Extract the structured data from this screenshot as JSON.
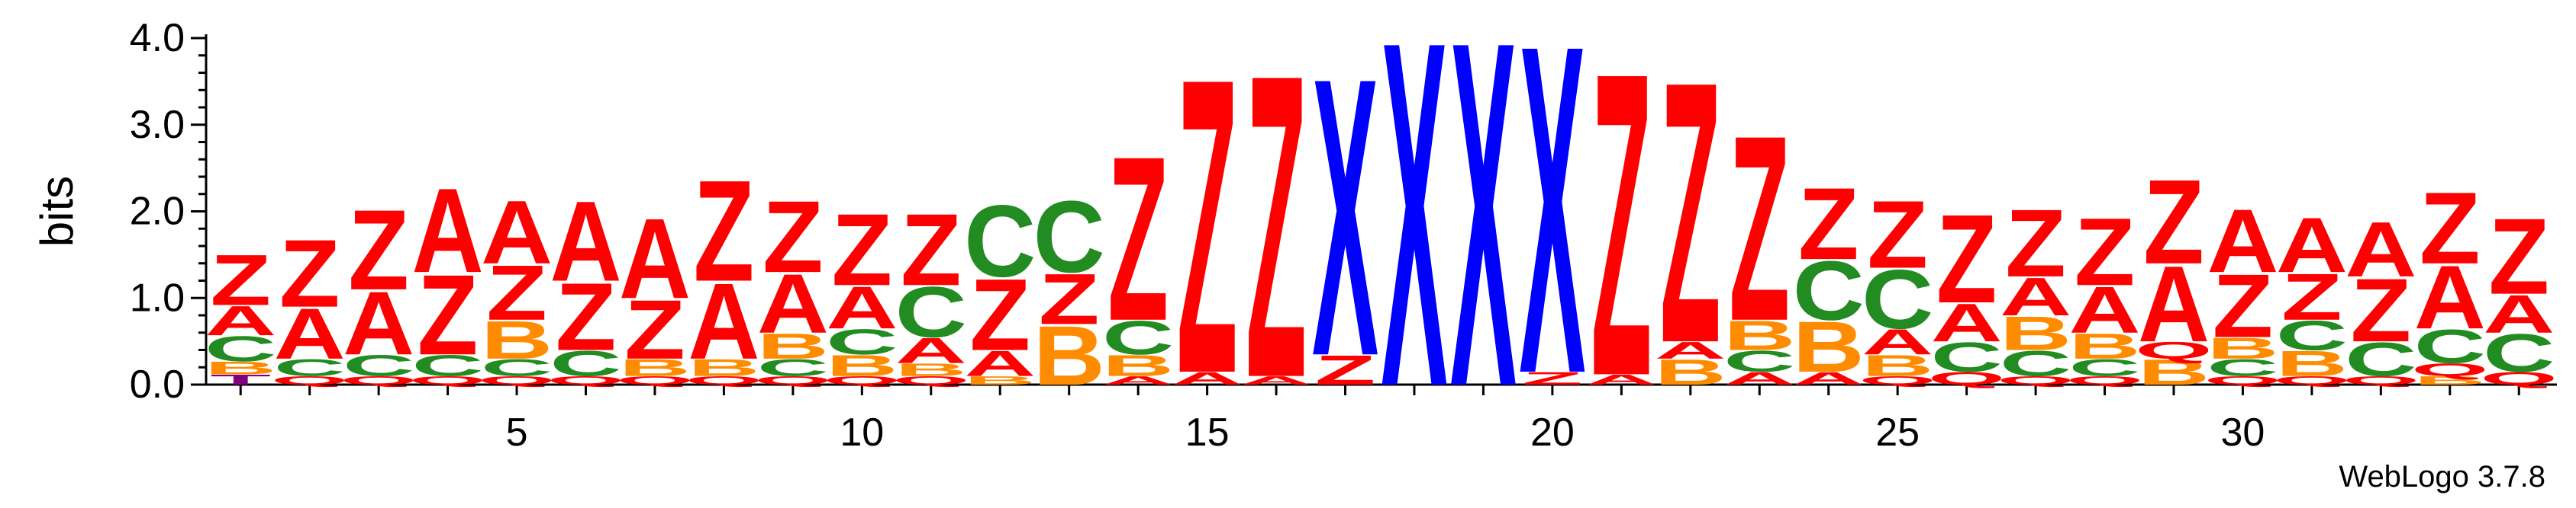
{
  "chart_data": {
    "type": "sequence-logo",
    "ylabel": "bits",
    "ylim": [
      0,
      4.0
    ],
    "y_ticks": [
      "0.0",
      "1.0",
      "2.0",
      "3.0",
      "4.0"
    ],
    "x_ticks": [
      5,
      10,
      15,
      20,
      25,
      30
    ],
    "colors": {
      "A": "#ff0000",
      "Z": "#ff0000",
      "Q": "#ff0000",
      "C": "#228b22",
      "B": "#ff8c00",
      "X": "#0000ff",
      "T": "#800080"
    },
    "positions": [
      {
        "pos": 1,
        "stack": [
          [
            "T",
            0.12
          ],
          [
            "B",
            0.15
          ],
          [
            "C",
            0.3
          ],
          [
            "A",
            0.35
          ],
          [
            "Z",
            0.6
          ]
        ]
      },
      {
        "pos": 2,
        "stack": [
          [
            "Q",
            0.1
          ],
          [
            "C",
            0.2
          ],
          [
            "A",
            0.6
          ],
          [
            "Z",
            0.8
          ]
        ]
      },
      {
        "pos": 3,
        "stack": [
          [
            "Q",
            0.1
          ],
          [
            "C",
            0.25
          ],
          [
            "A",
            0.75
          ],
          [
            "Z",
            0.95
          ]
        ]
      },
      {
        "pos": 4,
        "stack": [
          [
            "Q",
            0.1
          ],
          [
            "C",
            0.25
          ],
          [
            "Z",
            0.95
          ],
          [
            "A",
            1.0
          ]
        ]
      },
      {
        "pos": 5,
        "stack": [
          [
            "Q",
            0.1
          ],
          [
            "C",
            0.2
          ],
          [
            "B",
            0.45
          ],
          [
            "Z",
            0.65
          ],
          [
            "A",
            0.75
          ]
        ]
      },
      {
        "pos": 6,
        "stack": [
          [
            "Q",
            0.1
          ],
          [
            "C",
            0.3
          ],
          [
            "Z",
            0.8
          ],
          [
            "A",
            0.95
          ]
        ]
      },
      {
        "pos": 7,
        "stack": [
          [
            "Q",
            0.1
          ],
          [
            "B",
            0.2
          ],
          [
            "Z",
            0.7
          ],
          [
            "A",
            0.95
          ]
        ]
      },
      {
        "pos": 8,
        "stack": [
          [
            "Q",
            0.1
          ],
          [
            "B",
            0.2
          ],
          [
            "A",
            0.9
          ],
          [
            "Z",
            1.2
          ]
        ]
      },
      {
        "pos": 9,
        "stack": [
          [
            "Q",
            0.1
          ],
          [
            "C",
            0.2
          ],
          [
            "B",
            0.3
          ],
          [
            "A",
            0.7
          ],
          [
            "Z",
            0.85
          ]
        ]
      },
      {
        "pos": 10,
        "stack": [
          [
            "Q",
            0.1
          ],
          [
            "B",
            0.25
          ],
          [
            "C",
            0.3
          ],
          [
            "A",
            0.5
          ],
          [
            "Z",
            0.85
          ]
        ]
      },
      {
        "pos": 11,
        "stack": [
          [
            "Q",
            0.1
          ],
          [
            "B",
            0.15
          ],
          [
            "A",
            0.3
          ],
          [
            "C",
            0.6
          ],
          [
            "Z",
            0.85
          ]
        ]
      },
      {
        "pos": 12,
        "stack": [
          [
            "B",
            0.1
          ],
          [
            "A",
            0.3
          ],
          [
            "Z",
            0.85
          ],
          [
            "C",
            0.85
          ]
        ]
      },
      {
        "pos": 13,
        "stack": [
          [
            "B",
            0.7
          ],
          [
            "Z",
            0.6
          ],
          [
            "C",
            0.85
          ]
        ]
      },
      {
        "pos": 14,
        "stack": [
          [
            "A",
            0.1
          ],
          [
            "B",
            0.25
          ],
          [
            "C",
            0.4
          ],
          [
            "Z",
            1.95
          ]
        ]
      },
      {
        "pos": 15,
        "stack": [
          [
            "A",
            0.15
          ],
          [
            "Z",
            3.5
          ]
        ]
      },
      {
        "pos": 16,
        "stack": [
          [
            "A",
            0.1
          ],
          [
            "Z",
            3.6
          ]
        ]
      },
      {
        "pos": 17,
        "stack": [
          [
            "Z",
            0.35
          ],
          [
            "X",
            3.3
          ]
        ]
      },
      {
        "pos": 18,
        "stack": [
          [
            "X",
            4.1
          ]
        ]
      },
      {
        "pos": 19,
        "stack": [
          [
            "X",
            4.1
          ]
        ]
      },
      {
        "pos": 20,
        "stack": [
          [
            "Z",
            0.15
          ],
          [
            "X",
            3.9
          ]
        ]
      },
      {
        "pos": 21,
        "stack": [
          [
            "A",
            0.12
          ],
          [
            "Z",
            3.6
          ]
        ]
      },
      {
        "pos": 22,
        "stack": [
          [
            "B",
            0.3
          ],
          [
            "A",
            0.2
          ],
          [
            "Z",
            3.1
          ]
        ]
      },
      {
        "pos": 23,
        "stack": [
          [
            "A",
            0.15
          ],
          [
            "C",
            0.25
          ],
          [
            "B",
            0.35
          ],
          [
            "Z",
            2.2
          ]
        ]
      },
      {
        "pos": 24,
        "stack": [
          [
            "A",
            0.15
          ],
          [
            "B",
            0.6
          ],
          [
            "C",
            0.7
          ],
          [
            "Z",
            0.85
          ]
        ]
      },
      {
        "pos": 25,
        "stack": [
          [
            "Q",
            0.1
          ],
          [
            "B",
            0.25
          ],
          [
            "A",
            0.3
          ],
          [
            "C",
            0.7
          ],
          [
            "Z",
            0.8
          ]
        ]
      },
      {
        "pos": 26,
        "stack": [
          [
            "Q",
            0.15
          ],
          [
            "C",
            0.35
          ],
          [
            "A",
            0.45
          ],
          [
            "Z",
            1.05
          ]
        ]
      },
      {
        "pos": 27,
        "stack": [
          [
            "Q",
            0.1
          ],
          [
            "C",
            0.3
          ],
          [
            "B",
            0.4
          ],
          [
            "A",
            0.45
          ],
          [
            "Z",
            0.8
          ]
        ]
      },
      {
        "pos": 28,
        "stack": [
          [
            "Q",
            0.1
          ],
          [
            "C",
            0.2
          ],
          [
            "B",
            0.3
          ],
          [
            "A",
            0.55
          ],
          [
            "Z",
            0.8
          ]
        ]
      },
      {
        "pos": 29,
        "stack": [
          [
            "B",
            0.3
          ],
          [
            "Q",
            0.2
          ],
          [
            "A",
            0.9
          ],
          [
            "Z",
            1.0
          ]
        ]
      },
      {
        "pos": 30,
        "stack": [
          [
            "Q",
            0.1
          ],
          [
            "C",
            0.2
          ],
          [
            "B",
            0.25
          ],
          [
            "Z",
            0.75
          ],
          [
            "A",
            0.75
          ]
        ]
      },
      {
        "pos": 31,
        "stack": [
          [
            "Q",
            0.1
          ],
          [
            "B",
            0.3
          ],
          [
            "C",
            0.35
          ],
          [
            "Z",
            0.55
          ],
          [
            "A",
            0.65
          ]
        ]
      },
      {
        "pos": 32,
        "stack": [
          [
            "Q",
            0.1
          ],
          [
            "C",
            0.4
          ],
          [
            "Z",
            0.75
          ],
          [
            "A",
            0.65
          ]
        ]
      },
      {
        "pos": 33,
        "stack": [
          [
            "B",
            0.1
          ],
          [
            "Q",
            0.15
          ],
          [
            "C",
            0.4
          ],
          [
            "A",
            0.75
          ],
          [
            "Z",
            0.85
          ]
        ]
      },
      {
        "pos": 34,
        "stack": [
          [
            "Q",
            0.15
          ],
          [
            "C",
            0.45
          ],
          [
            "A",
            0.45
          ],
          [
            "Z",
            0.9
          ]
        ]
      }
    ]
  },
  "credit": "WebLogo 3.7.8"
}
